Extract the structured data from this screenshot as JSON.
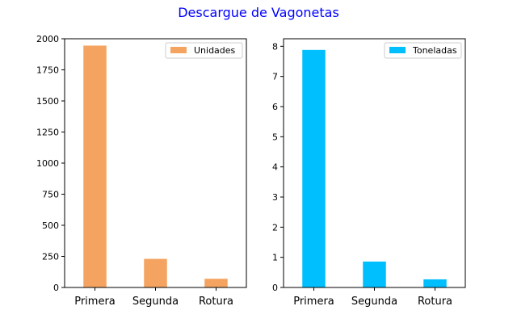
{
  "title": "Descargue de Vagonetas",
  "colors": {
    "title": "#0000ff",
    "unidades": "#f4a460",
    "toneladas": "#00bfff"
  },
  "chart_data": [
    {
      "type": "bar",
      "categories": [
        "Primera",
        "Segunda",
        "Rotura"
      ],
      "series": [
        {
          "name": "Unidades",
          "values": [
            1945,
            230,
            70
          ]
        }
      ],
      "ylim": [
        0,
        2000
      ],
      "yticks": [
        0,
        250,
        500,
        750,
        1000,
        1250,
        1500,
        1750,
        2000
      ],
      "legend": "top-right",
      "grid": false
    },
    {
      "type": "bar",
      "categories": [
        "Primera",
        "Segunda",
        "Rotura"
      ],
      "series": [
        {
          "name": "Toneladas",
          "values": [
            7.88,
            0.86,
            0.27
          ]
        }
      ],
      "ylim": [
        0,
        8.25
      ],
      "yticks": [
        0,
        1,
        2,
        3,
        4,
        5,
        6,
        7,
        8
      ],
      "legend": "top-right",
      "grid": false
    }
  ]
}
